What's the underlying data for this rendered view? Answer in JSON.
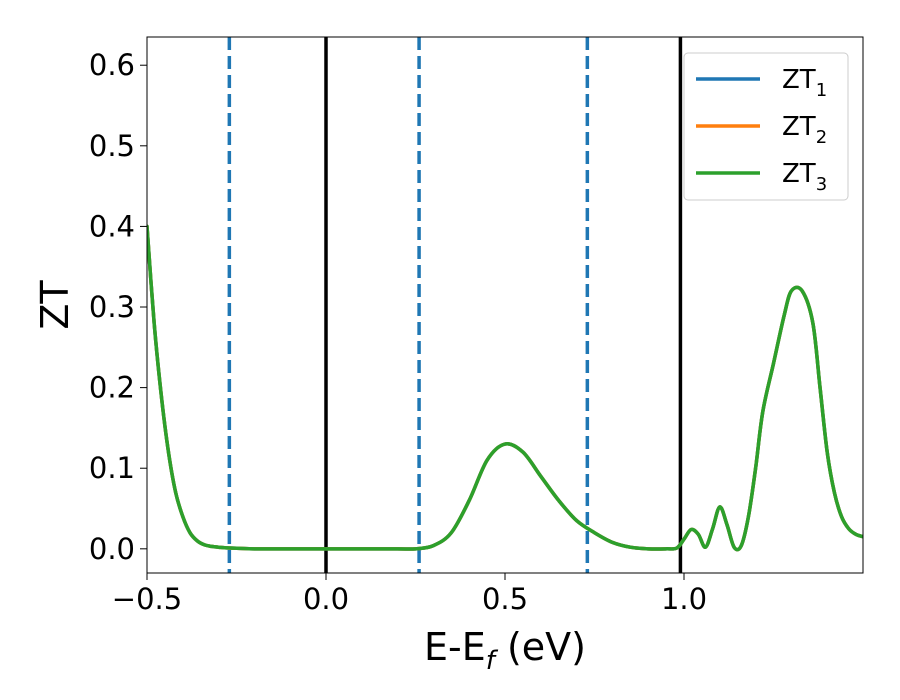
{
  "chart_data": {
    "type": "line",
    "xlabel_main": "E-E",
    "xlabel_sub": "f",
    "xlabel_unit": " (eV)",
    "ylabel": "ZT",
    "xlim": [
      -0.5,
      1.5
    ],
    "ylim": [
      -0.03,
      0.635
    ],
    "x_ticks": [
      -0.5,
      0.0,
      0.5,
      1.0
    ],
    "x_tick_labels": [
      "−0.5",
      "0.0",
      "0.5",
      "1.0"
    ],
    "y_ticks": [
      0.0,
      0.1,
      0.2,
      0.3,
      0.4,
      0.5,
      0.6
    ],
    "y_tick_labels": [
      "0.0",
      "0.1",
      "0.2",
      "0.3",
      "0.4",
      "0.5",
      "0.6"
    ],
    "grid": false,
    "legend_position": "top-right",
    "vertical_lines_solid": {
      "color": "#000000",
      "x": [
        0.0,
        0.99
      ]
    },
    "vertical_lines_dashed": {
      "color": "#1f77b4",
      "x": [
        -0.27,
        0.26,
        0.73
      ]
    },
    "series": [
      {
        "name": "ZT",
        "subscript": "1",
        "color": "#1f77b4",
        "x": [
          -0.5,
          -0.48,
          -0.46,
          -0.44,
          -0.42,
          -0.4,
          -0.38,
          -0.36,
          -0.34,
          -0.32,
          -0.3,
          -0.27,
          -0.2,
          -0.1,
          0.0,
          0.1,
          0.2,
          0.25,
          0.3,
          0.35,
          0.4,
          0.45,
          0.5,
          0.55,
          0.6,
          0.65,
          0.7,
          0.75,
          0.8,
          0.85,
          0.9,
          0.95,
          0.98,
          1.0,
          1.02,
          1.04,
          1.06,
          1.08,
          1.1,
          1.12,
          1.14,
          1.16,
          1.18,
          1.2,
          1.22,
          1.25,
          1.28,
          1.3,
          1.33,
          1.36,
          1.38,
          1.4,
          1.42,
          1.44,
          1.46,
          1.48,
          1.5
        ],
        "y": [
          0.4,
          0.28,
          0.19,
          0.12,
          0.07,
          0.04,
          0.02,
          0.01,
          0.005,
          0.003,
          0.002,
          0.001,
          0.0,
          0.0,
          0.0,
          0.0,
          0.0,
          0.0,
          0.004,
          0.02,
          0.06,
          0.11,
          0.13,
          0.12,
          0.09,
          0.06,
          0.035,
          0.02,
          0.008,
          0.002,
          0.0,
          0.0,
          0.001,
          0.012,
          0.024,
          0.018,
          0.002,
          0.025,
          0.052,
          0.03,
          0.002,
          0.004,
          0.04,
          0.1,
          0.17,
          0.23,
          0.29,
          0.32,
          0.32,
          0.28,
          0.2,
          0.12,
          0.07,
          0.04,
          0.025,
          0.018,
          0.015
        ]
      },
      {
        "name": "ZT",
        "subscript": "2",
        "color": "#ff7f0e",
        "x": [
          -0.5,
          -0.48,
          -0.46,
          -0.44,
          -0.42,
          -0.4,
          -0.38,
          -0.36,
          -0.34,
          -0.32,
          -0.3,
          -0.27,
          -0.2,
          -0.1,
          0.0,
          0.1,
          0.2,
          0.25,
          0.3,
          0.35,
          0.4,
          0.45,
          0.5,
          0.55,
          0.6,
          0.65,
          0.7,
          0.75,
          0.8,
          0.85,
          0.9,
          0.95,
          0.98,
          1.0,
          1.02,
          1.04,
          1.06,
          1.08,
          1.1,
          1.12,
          1.14,
          1.16,
          1.18,
          1.2,
          1.22,
          1.25,
          1.28,
          1.3,
          1.33,
          1.36,
          1.38,
          1.4,
          1.42,
          1.44,
          1.46,
          1.48,
          1.5
        ],
        "y": [
          0.4,
          0.28,
          0.19,
          0.12,
          0.07,
          0.04,
          0.02,
          0.01,
          0.005,
          0.003,
          0.002,
          0.001,
          0.0,
          0.0,
          0.0,
          0.0,
          0.0,
          0.0,
          0.004,
          0.02,
          0.06,
          0.11,
          0.13,
          0.12,
          0.09,
          0.06,
          0.035,
          0.02,
          0.008,
          0.002,
          0.0,
          0.0,
          0.001,
          0.012,
          0.024,
          0.018,
          0.002,
          0.025,
          0.052,
          0.03,
          0.002,
          0.004,
          0.04,
          0.1,
          0.17,
          0.23,
          0.29,
          0.32,
          0.32,
          0.28,
          0.2,
          0.12,
          0.07,
          0.04,
          0.025,
          0.018,
          0.015
        ]
      },
      {
        "name": "ZT",
        "subscript": "3",
        "color": "#2ca02c",
        "x": [
          -0.5,
          -0.48,
          -0.46,
          -0.44,
          -0.42,
          -0.4,
          -0.38,
          -0.36,
          -0.34,
          -0.32,
          -0.3,
          -0.27,
          -0.2,
          -0.1,
          0.0,
          0.1,
          0.2,
          0.25,
          0.3,
          0.35,
          0.4,
          0.45,
          0.5,
          0.55,
          0.6,
          0.65,
          0.7,
          0.75,
          0.8,
          0.85,
          0.9,
          0.95,
          0.98,
          1.0,
          1.02,
          1.04,
          1.06,
          1.08,
          1.1,
          1.12,
          1.14,
          1.16,
          1.18,
          1.2,
          1.22,
          1.25,
          1.28,
          1.3,
          1.33,
          1.36,
          1.38,
          1.4,
          1.42,
          1.44,
          1.46,
          1.48,
          1.5
        ],
        "y": [
          0.4,
          0.28,
          0.19,
          0.12,
          0.07,
          0.04,
          0.02,
          0.01,
          0.005,
          0.003,
          0.002,
          0.001,
          0.0,
          0.0,
          0.0,
          0.0,
          0.0,
          0.0,
          0.004,
          0.02,
          0.06,
          0.11,
          0.13,
          0.12,
          0.09,
          0.06,
          0.035,
          0.02,
          0.008,
          0.002,
          0.0,
          0.0,
          0.001,
          0.012,
          0.024,
          0.018,
          0.002,
          0.025,
          0.052,
          0.03,
          0.002,
          0.004,
          0.04,
          0.1,
          0.17,
          0.23,
          0.29,
          0.32,
          0.32,
          0.28,
          0.2,
          0.12,
          0.07,
          0.04,
          0.025,
          0.018,
          0.015
        ]
      }
    ]
  }
}
